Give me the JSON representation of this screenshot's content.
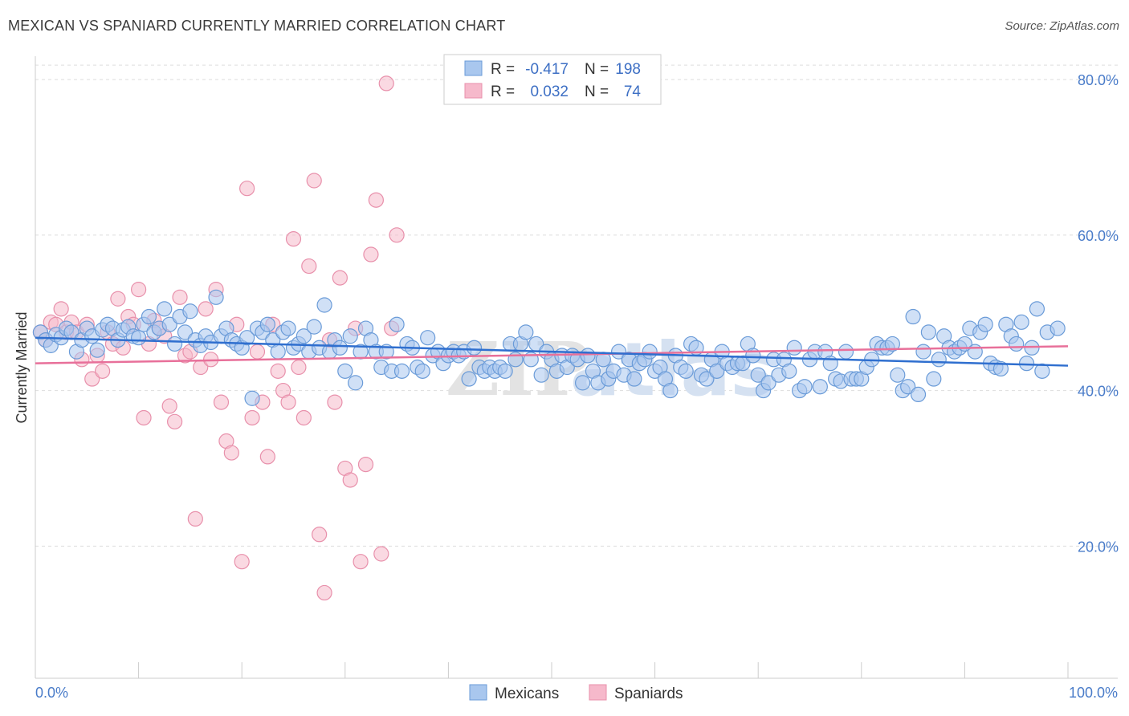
{
  "title": "MEXICAN VS SPANIARD CURRENTLY MARRIED CORRELATION CHART",
  "source": "Source: ZipAtlas.com",
  "watermark": {
    "zip": "ZIP",
    "atlas": "atlas"
  },
  "colors": {
    "blue_fill": "#a9c7ee",
    "blue_stroke": "#6a9bd8",
    "blue_line": "#2f6fcf",
    "pink_fill": "#f6b9cb",
    "pink_stroke": "#e890ab",
    "pink_line": "#e8709a",
    "axis_text": "#4a7cc9",
    "grid": "#dddddd"
  },
  "legend": {
    "rows": [
      {
        "r_label": "R =",
        "r_value": "-0.417",
        "n_label": "N =",
        "n_value": "198",
        "color": "blue"
      },
      {
        "r_label": "R =",
        "r_value": "0.032",
        "n_label": "N =",
        "n_value": "74",
        "color": "pink"
      }
    ]
  },
  "bottom_legend": [
    "Mexicans",
    "Spaniards"
  ],
  "chart_data": {
    "type": "scatter",
    "title": "MEXICAN VS SPANIARD CURRENTLY MARRIED CORRELATION CHART",
    "xlabel": "",
    "ylabel": "Currently Married",
    "xlim": [
      0,
      100
    ],
    "ylim": [
      3,
      83
    ],
    "x_tick_labels": [
      "0.0%",
      "100.0%"
    ],
    "y_ticks": [
      20,
      40,
      60,
      80
    ],
    "y_tick_labels": [
      "20.0%",
      "40.0%",
      "60.0%",
      "80.0%"
    ],
    "grid": true,
    "legend_placement": "top-center",
    "series": [
      {
        "name": "Mexicans",
        "r": -0.417,
        "n": 198,
        "trend": {
          "x": [
            0,
            100
          ],
          "y": [
            46.8,
            43.2
          ]
        },
        "points": [
          [
            0.5,
            47.5
          ],
          [
            1,
            46.5
          ],
          [
            1.5,
            45.8
          ],
          [
            2,
            47.2
          ],
          [
            2.5,
            46.8
          ],
          [
            3,
            48
          ],
          [
            3.5,
            47.5
          ],
          [
            4,
            45
          ],
          [
            4.5,
            46.5
          ],
          [
            5,
            48
          ],
          [
            5.5,
            47
          ],
          [
            6,
            45.2
          ],
          [
            6.5,
            47.8
          ],
          [
            7,
            48.5
          ],
          [
            7.5,
            48
          ],
          [
            8,
            46.5
          ],
          [
            8.5,
            47.8
          ],
          [
            9,
            48.2
          ],
          [
            9.5,
            47
          ],
          [
            10,
            46.8
          ],
          [
            10.5,
            48.5
          ],
          [
            11,
            49.5
          ],
          [
            11.5,
            47.5
          ],
          [
            12,
            48
          ],
          [
            12.5,
            50.5
          ],
          [
            13,
            48.5
          ],
          [
            13.5,
            46
          ],
          [
            14,
            49.5
          ],
          [
            14.5,
            47.5
          ],
          [
            15,
            50.2
          ],
          [
            15.5,
            46.5
          ],
          [
            16,
            45.8
          ],
          [
            16.5,
            47
          ],
          [
            17,
            46.2
          ],
          [
            17.5,
            52
          ],
          [
            18,
            47
          ],
          [
            18.5,
            48
          ],
          [
            19,
            46.5
          ],
          [
            19.5,
            46
          ],
          [
            20,
            45.5
          ],
          [
            20.5,
            46.8
          ],
          [
            21,
            39
          ],
          [
            21.5,
            48
          ],
          [
            22,
            47.5
          ],
          [
            22.5,
            48.5
          ],
          [
            23,
            46.5
          ],
          [
            23.5,
            45
          ],
          [
            24,
            47.5
          ],
          [
            24.5,
            48
          ],
          [
            25,
            45.5
          ],
          [
            25.5,
            46
          ],
          [
            26,
            47
          ],
          [
            26.5,
            45
          ],
          [
            27,
            48.2
          ],
          [
            27.5,
            45.5
          ],
          [
            28,
            51
          ],
          [
            28.5,
            45
          ],
          [
            29,
            46.5
          ],
          [
            29.5,
            45.5
          ],
          [
            30,
            42.5
          ],
          [
            30.5,
            47
          ],
          [
            31,
            41
          ],
          [
            31.5,
            45
          ],
          [
            32,
            48
          ],
          [
            32.5,
            46.5
          ],
          [
            33,
            45
          ],
          [
            33.5,
            43
          ],
          [
            34,
            45
          ],
          [
            34.5,
            42.5
          ],
          [
            35,
            48.5
          ],
          [
            35.5,
            42.5
          ],
          [
            36,
            46
          ],
          [
            36.5,
            45.5
          ],
          [
            37,
            43
          ],
          [
            37.5,
            42.5
          ],
          [
            38,
            46.8
          ],
          [
            38.5,
            44.5
          ],
          [
            39,
            45
          ],
          [
            39.5,
            43.5
          ],
          [
            40,
            44.5
          ],
          [
            40.5,
            45
          ],
          [
            41,
            44.5
          ],
          [
            41.5,
            45
          ],
          [
            42,
            41.5
          ],
          [
            42.5,
            45.5
          ],
          [
            43,
            43
          ],
          [
            43.5,
            42.5
          ],
          [
            44,
            43
          ],
          [
            44.5,
            42.5
          ],
          [
            45,
            43
          ],
          [
            45.5,
            42.5
          ],
          [
            46,
            46
          ],
          [
            46.5,
            44
          ],
          [
            47,
            46
          ],
          [
            47.5,
            47.5
          ],
          [
            48,
            44
          ],
          [
            48.5,
            46
          ],
          [
            49,
            42
          ],
          [
            49.5,
            45
          ],
          [
            50,
            44
          ],
          [
            50.5,
            42.5
          ],
          [
            51,
            44.5
          ],
          [
            51.5,
            43
          ],
          [
            52,
            44.5
          ],
          [
            52.5,
            44
          ],
          [
            53,
            41
          ],
          [
            53.5,
            44.5
          ],
          [
            54,
            42.5
          ],
          [
            54.5,
            41
          ],
          [
            55,
            44
          ],
          [
            55.5,
            41.5
          ],
          [
            56,
            42.5
          ],
          [
            56.5,
            45
          ],
          [
            57,
            42
          ],
          [
            57.5,
            44
          ],
          [
            58,
            41.5
          ],
          [
            58.5,
            43.5
          ],
          [
            59,
            44
          ],
          [
            59.5,
            45
          ],
          [
            60,
            42.5
          ],
          [
            60.5,
            43
          ],
          [
            61,
            41.5
          ],
          [
            61.5,
            40
          ],
          [
            62,
            44.5
          ],
          [
            62.5,
            43
          ],
          [
            63,
            42.5
          ],
          [
            63.5,
            46
          ],
          [
            64,
            45.5
          ],
          [
            64.5,
            42
          ],
          [
            65,
            41.5
          ],
          [
            65.5,
            44
          ],
          [
            66,
            42.5
          ],
          [
            66.5,
            45
          ],
          [
            67,
            43.5
          ],
          [
            67.5,
            43
          ],
          [
            68,
            43.5
          ],
          [
            68.5,
            43.5
          ],
          [
            69,
            46
          ],
          [
            69.5,
            44.5
          ],
          [
            70,
            42
          ],
          [
            70.5,
            40
          ],
          [
            71,
            41
          ],
          [
            71.5,
            44
          ],
          [
            72,
            42
          ],
          [
            72.5,
            44
          ],
          [
            73,
            42.5
          ],
          [
            73.5,
            45.5
          ],
          [
            74,
            40
          ],
          [
            74.5,
            40.5
          ],
          [
            75,
            44
          ],
          [
            75.5,
            45
          ],
          [
            76,
            40.5
          ],
          [
            76.5,
            45
          ],
          [
            77,
            43.5
          ],
          [
            77.5,
            41.5
          ],
          [
            78,
            41.2
          ],
          [
            78.5,
            45
          ],
          [
            79,
            41.5
          ],
          [
            79.5,
            41.5
          ],
          [
            80,
            41.5
          ],
          [
            80.5,
            43
          ],
          [
            81,
            44
          ],
          [
            81.5,
            46
          ],
          [
            82,
            45.5
          ],
          [
            82.5,
            45.5
          ],
          [
            83,
            46
          ],
          [
            83.5,
            42
          ],
          [
            84,
            40
          ],
          [
            84.5,
            40.5
          ],
          [
            85,
            49.5
          ],
          [
            85.5,
            39.5
          ],
          [
            86,
            45
          ],
          [
            86.5,
            47.5
          ],
          [
            87,
            41.5
          ],
          [
            87.5,
            44
          ],
          [
            88,
            47
          ],
          [
            88.5,
            45.5
          ],
          [
            89,
            45
          ],
          [
            89.5,
            45.5
          ],
          [
            90,
            46
          ],
          [
            90.5,
            48
          ],
          [
            91,
            45
          ],
          [
            91.5,
            47.5
          ],
          [
            92,
            48.5
          ],
          [
            92.5,
            43.5
          ],
          [
            93,
            43
          ],
          [
            93.5,
            42.8
          ],
          [
            94,
            48.5
          ],
          [
            94.5,
            47
          ],
          [
            95,
            46
          ],
          [
            95.5,
            48.8
          ],
          [
            96,
            43.5
          ],
          [
            96.5,
            45.5
          ],
          [
            97,
            50.5
          ],
          [
            97.5,
            42.5
          ],
          [
            98,
            47.5
          ],
          [
            99,
            48
          ]
        ]
      },
      {
        "name": "Spaniards",
        "r": 0.032,
        "n": 74,
        "trend": {
          "x": [
            0,
            100
          ],
          "y": [
            43.5,
            45.7
          ]
        },
        "points": [
          [
            0.5,
            47.5
          ],
          [
            1,
            46.5
          ],
          [
            1.5,
            48.8
          ],
          [
            2,
            48.5
          ],
          [
            2.5,
            50.5
          ],
          [
            3,
            47.5
          ],
          [
            3.5,
            48.8
          ],
          [
            4,
            47.5
          ],
          [
            4.5,
            44
          ],
          [
            5,
            48.5
          ],
          [
            5.5,
            41.5
          ],
          [
            6,
            44.5
          ],
          [
            6.5,
            42.5
          ],
          [
            7,
            47.5
          ],
          [
            7.5,
            46
          ],
          [
            8,
            51.8
          ],
          [
            8.5,
            45.5
          ],
          [
            9,
            49.5
          ],
          [
            9.5,
            48.5
          ],
          [
            10,
            53
          ],
          [
            10.5,
            36.5
          ],
          [
            11,
            46
          ],
          [
            11.5,
            49
          ],
          [
            12,
            48
          ],
          [
            12.5,
            47
          ],
          [
            13,
            38
          ],
          [
            13.5,
            36
          ],
          [
            14,
            52
          ],
          [
            14.5,
            44.5
          ],
          [
            15,
            45
          ],
          [
            15.5,
            23.5
          ],
          [
            16,
            43
          ],
          [
            16.5,
            50.5
          ],
          [
            17,
            44
          ],
          [
            17.5,
            53
          ],
          [
            18,
            38.5
          ],
          [
            18.5,
            33.5
          ],
          [
            19,
            32
          ],
          [
            19.5,
            48.5
          ],
          [
            20,
            18
          ],
          [
            20.5,
            66
          ],
          [
            21,
            36.5
          ],
          [
            21.5,
            45
          ],
          [
            22,
            38.5
          ],
          [
            22.5,
            31.5
          ],
          [
            23,
            48.5
          ],
          [
            23.5,
            42.5
          ],
          [
            24,
            40
          ],
          [
            24.5,
            38.5
          ],
          [
            25,
            59.5
          ],
          [
            25.5,
            43
          ],
          [
            26,
            36.5
          ],
          [
            26.5,
            56
          ],
          [
            27,
            67
          ],
          [
            27.5,
            21.5
          ],
          [
            28,
            14
          ],
          [
            28.5,
            46.5
          ],
          [
            29,
            38.5
          ],
          [
            29.5,
            54.5
          ],
          [
            30,
            30
          ],
          [
            30.5,
            28.5
          ],
          [
            31,
            48
          ],
          [
            31.5,
            18
          ],
          [
            32,
            30.5
          ],
          [
            32.5,
            57.5
          ],
          [
            33,
            64.5
          ],
          [
            33.5,
            19
          ],
          [
            34,
            79.5
          ],
          [
            34.5,
            48
          ],
          [
            35,
            60
          ]
        ]
      }
    ]
  },
  "axis": {
    "ylabel": "Currently Married",
    "x_left": "0.0%",
    "x_right": "100.0%"
  }
}
